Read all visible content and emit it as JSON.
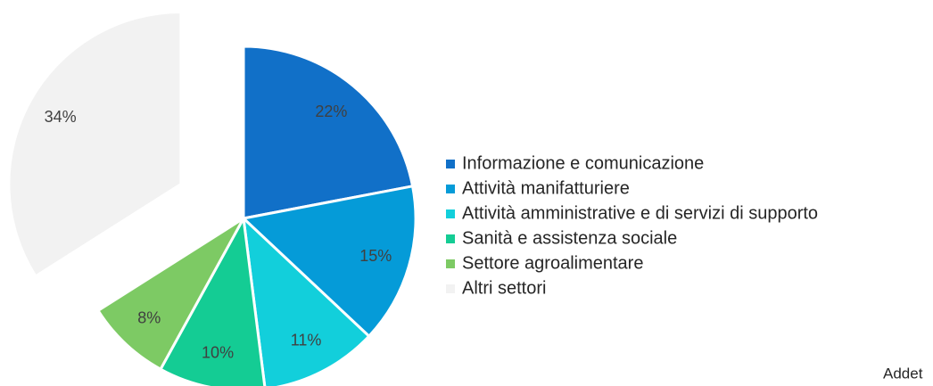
{
  "chart_data": {
    "type": "pie",
    "categories": [
      "Informazione e comunicazione",
      "Attività manifatturiere",
      "Attività amministrative e di servizi di supporto",
      "Sanità e assistenza sociale",
      "Settore agroalimentare",
      "Altri settori"
    ],
    "values": [
      22,
      15,
      11,
      10,
      8,
      34
    ],
    "value_labels": [
      "22%",
      "15%",
      "11%",
      "10%",
      "8%",
      "34%"
    ],
    "colors": [
      "#1170c8",
      "#059bd8",
      "#12cfdb",
      "#14cc94",
      "#7dca64",
      "#f2f2f2"
    ],
    "exploded": [
      false,
      false,
      false,
      false,
      false,
      true
    ],
    "legend": "right",
    "note": "Addet"
  }
}
